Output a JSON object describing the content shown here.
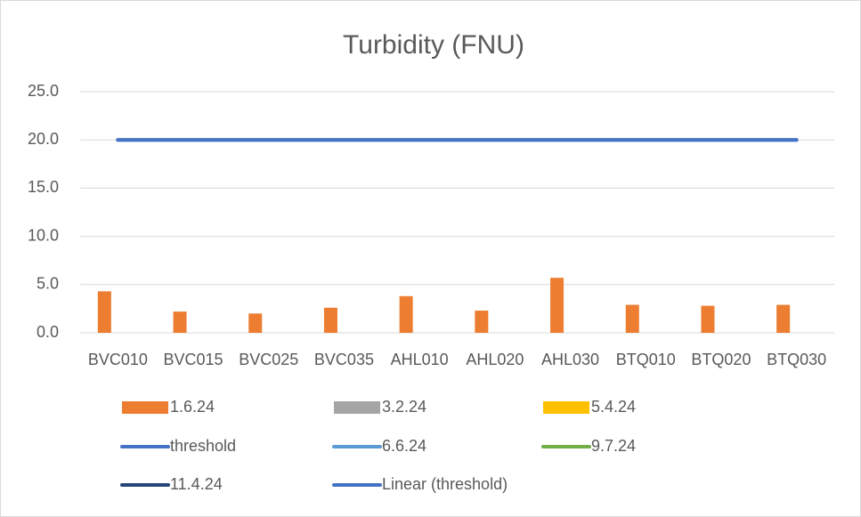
{
  "chart_data": {
    "type": "bar",
    "title": "Turbidity (FNU)",
    "categories": [
      "BVC010",
      "BVC015",
      "BVC025",
      "BVC035",
      "AHL010",
      "AHL020",
      "AHL030",
      "BTQ010",
      "BTQ020",
      "BTQ030"
    ],
    "series": [
      {
        "name": "1.6.24",
        "type": "bar",
        "color": "#ed7d31",
        "values": [
          4.3,
          2.2,
          2.0,
          2.6,
          3.8,
          2.3,
          5.7,
          2.9,
          2.8,
          2.9
        ]
      },
      {
        "name": "3.2.24",
        "type": "bar",
        "color": "#a5a5a5",
        "values": [
          null,
          null,
          null,
          null,
          null,
          null,
          null,
          null,
          null,
          null
        ]
      },
      {
        "name": "5.4.24",
        "type": "bar",
        "color": "#ffc000",
        "values": [
          null,
          null,
          null,
          null,
          null,
          null,
          null,
          null,
          null,
          null
        ]
      },
      {
        "name": "threshold",
        "type": "line",
        "color": "#4472c4",
        "values": [
          20,
          20,
          20,
          20,
          20,
          20,
          20,
          20,
          20,
          20
        ]
      },
      {
        "name": "6.6.24",
        "type": "line",
        "color": "#5b9bd5",
        "values": [
          null,
          null,
          null,
          null,
          null,
          null,
          null,
          null,
          null,
          null
        ]
      },
      {
        "name": "9.7.24",
        "type": "line",
        "color": "#70ad47",
        "values": [
          null,
          null,
          null,
          null,
          null,
          null,
          null,
          null,
          null,
          null
        ]
      },
      {
        "name": "11.4.24",
        "type": "line",
        "color": "#264478",
        "values": [
          null,
          null,
          null,
          null,
          null,
          null,
          null,
          null,
          null,
          null
        ]
      },
      {
        "name": "Linear (threshold)",
        "type": "line",
        "color": "#4472c4",
        "values": [
          20,
          20,
          20,
          20,
          20,
          20,
          20,
          20,
          20,
          20
        ]
      }
    ],
    "ylim": [
      0,
      25
    ],
    "yticks": [
      {
        "value": 0,
        "label": "0.0"
      },
      {
        "value": 5,
        "label": "5.0"
      },
      {
        "value": 10,
        "label": "10.0"
      },
      {
        "value": 15,
        "label": "15.0"
      },
      {
        "value": 20,
        "label": "20.0"
      },
      {
        "value": 25,
        "label": "25.0"
      }
    ],
    "grid": true
  }
}
